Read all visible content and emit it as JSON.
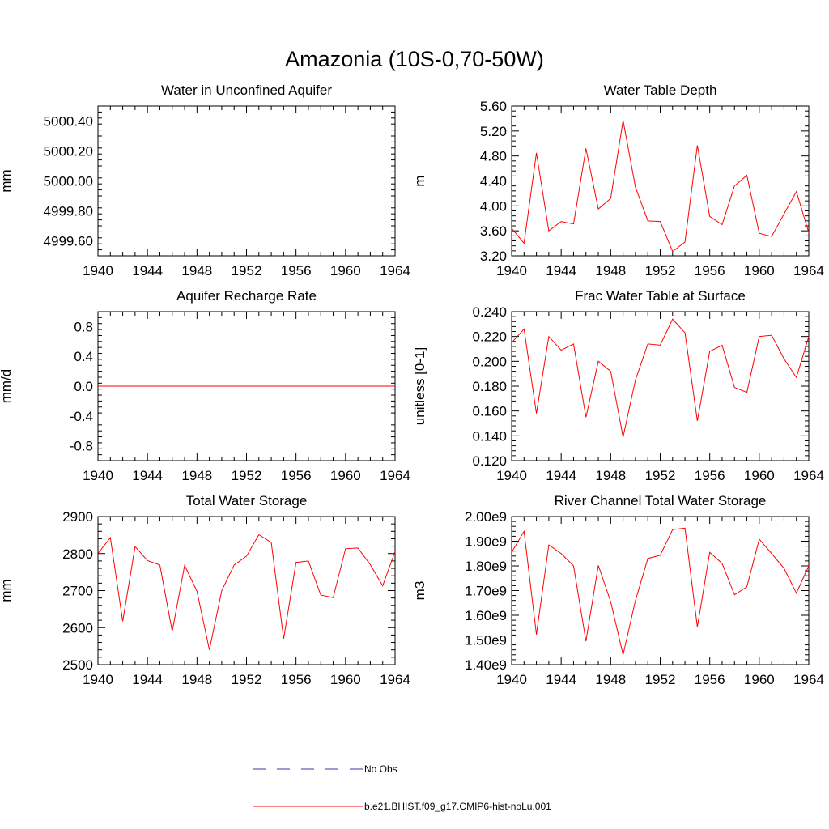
{
  "figure": {
    "title": "Amazonia (10S-0,70-50W)",
    "series_color": "#ff0000",
    "obs_color": "#3a3a9a"
  },
  "legend": {
    "obs_label": "No Obs",
    "model_label": "b.e21.BHIST.f09_g17.CMIP6-hist-noLu.001"
  },
  "chart_data": [
    {
      "type": "line",
      "title": "Water in Unconfined Aquifer",
      "ylabel": "mm",
      "xlim": [
        1940,
        1964
      ],
      "ylim": [
        4999.5,
        5000.5
      ],
      "xticks": [
        1940,
        1944,
        1948,
        1952,
        1956,
        1960,
        1964
      ],
      "yticks": [
        4999.6,
        4999.8,
        5000.0,
        5000.2,
        5000.4
      ],
      "ytick_labels": [
        "4999.60",
        "4999.80",
        "5000.00",
        "5000.20",
        "5000.40"
      ],
      "x": [
        1940,
        1941,
        1942,
        1943,
        1944,
        1945,
        1946,
        1947,
        1948,
        1949,
        1950,
        1951,
        1952,
        1953,
        1954,
        1955,
        1956,
        1957,
        1958,
        1959,
        1960,
        1961,
        1962,
        1963,
        1964
      ],
      "values": [
        5000,
        5000,
        5000,
        5000,
        5000,
        5000,
        5000,
        5000,
        5000,
        5000,
        5000,
        5000,
        5000,
        5000,
        5000,
        5000,
        5000,
        5000,
        5000,
        5000,
        5000,
        5000,
        5000,
        5000,
        5000
      ]
    },
    {
      "type": "line",
      "title": "Water Table Depth",
      "ylabel": "m",
      "xlim": [
        1940,
        1964
      ],
      "ylim": [
        3.2,
        5.6
      ],
      "xticks": [
        1940,
        1944,
        1948,
        1952,
        1956,
        1960,
        1964
      ],
      "yticks": [
        3.2,
        3.6,
        4.0,
        4.4,
        4.8,
        5.2,
        5.6
      ],
      "ytick_labels": [
        "3.20",
        "3.60",
        "4.00",
        "4.40",
        "4.80",
        "5.20",
        "5.60"
      ],
      "x": [
        1940,
        1941,
        1942,
        1943,
        1944,
        1945,
        1946,
        1947,
        1948,
        1949,
        1950,
        1951,
        1952,
        1953,
        1954,
        1955,
        1956,
        1957,
        1958,
        1959,
        1960,
        1961,
        1962,
        1963,
        1964
      ],
      "values": [
        3.64,
        3.4,
        4.85,
        3.6,
        3.75,
        3.71,
        4.92,
        3.95,
        4.12,
        5.37,
        4.3,
        3.76,
        3.75,
        3.27,
        3.42,
        4.97,
        3.83,
        3.7,
        4.32,
        4.49,
        3.56,
        3.51,
        3.87,
        4.23,
        3.57
      ]
    },
    {
      "type": "line",
      "title": "Aquifer Recharge Rate",
      "ylabel": "mm/d",
      "xlim": [
        1940,
        1964
      ],
      "ylim": [
        -1.0,
        1.0
      ],
      "xticks": [
        1940,
        1944,
        1948,
        1952,
        1956,
        1960,
        1964
      ],
      "yticks": [
        -0.8,
        -0.4,
        0.0,
        0.4,
        0.8
      ],
      "ytick_labels": [
        "-0.8",
        "-0.4",
        "0.0",
        "0.4",
        "0.8"
      ],
      "x": [
        1940,
        1941,
        1942,
        1943,
        1944,
        1945,
        1946,
        1947,
        1948,
        1949,
        1950,
        1951,
        1952,
        1953,
        1954,
        1955,
        1956,
        1957,
        1958,
        1959,
        1960,
        1961,
        1962,
        1963,
        1964
      ],
      "values": [
        0,
        0,
        0,
        0,
        0,
        0,
        0,
        0,
        0,
        0,
        0,
        0,
        0,
        0,
        0,
        0,
        0,
        0,
        0,
        0,
        0,
        0,
        0,
        0,
        0
      ]
    },
    {
      "type": "line",
      "title": "Frac Water Table at Surface",
      "ylabel": "unitless [0-1]",
      "xlim": [
        1940,
        1964
      ],
      "ylim": [
        0.12,
        0.24
      ],
      "xticks": [
        1940,
        1944,
        1948,
        1952,
        1956,
        1960,
        1964
      ],
      "yticks": [
        0.12,
        0.14,
        0.16,
        0.18,
        0.2,
        0.22,
        0.24
      ],
      "ytick_labels": [
        "0.120",
        "0.140",
        "0.160",
        "0.180",
        "0.200",
        "0.220",
        "0.240"
      ],
      "x": [
        1940,
        1941,
        1942,
        1943,
        1944,
        1945,
        1946,
        1947,
        1948,
        1949,
        1950,
        1951,
        1952,
        1953,
        1954,
        1955,
        1956,
        1957,
        1958,
        1959,
        1960,
        1961,
        1962,
        1963,
        1964
      ],
      "values": [
        0.215,
        0.226,
        0.158,
        0.22,
        0.209,
        0.214,
        0.155,
        0.2,
        0.192,
        0.139,
        0.185,
        0.214,
        0.213,
        0.234,
        0.223,
        0.152,
        0.208,
        0.213,
        0.179,
        0.175,
        0.22,
        0.221,
        0.202,
        0.187,
        0.22
      ]
    },
    {
      "type": "line",
      "title": "Total Water Storage",
      "ylabel": "mm",
      "xlim": [
        1940,
        1964
      ],
      "ylim": [
        2500,
        2900
      ],
      "xticks": [
        1940,
        1944,
        1948,
        1952,
        1956,
        1960,
        1964
      ],
      "yticks": [
        2500,
        2600,
        2700,
        2800,
        2900
      ],
      "ytick_labels": [
        "2500",
        "2600",
        "2700",
        "2800",
        "2900"
      ],
      "x": [
        1940,
        1941,
        1942,
        1943,
        1944,
        1945,
        1946,
        1947,
        1948,
        1949,
        1950,
        1951,
        1952,
        1953,
        1954,
        1955,
        1956,
        1957,
        1958,
        1959,
        1960,
        1961,
        1962,
        1963,
        1964
      ],
      "values": [
        2800,
        2843,
        2617,
        2819,
        2781,
        2769,
        2590,
        2768,
        2698,
        2540,
        2700,
        2769,
        2793,
        2851,
        2830,
        2570,
        2776,
        2780,
        2688,
        2681,
        2813,
        2815,
        2770,
        2713,
        2806
      ]
    },
    {
      "type": "line",
      "title": "River Channel Total Water Storage",
      "ylabel": "m3",
      "xlim": [
        1940,
        1964
      ],
      "ylim": [
        1400000000.0,
        2000000000.0
      ],
      "xticks": [
        1940,
        1944,
        1948,
        1952,
        1956,
        1960,
        1964
      ],
      "yticks": [
        1400000000.0,
        1500000000.0,
        1600000000.0,
        1700000000.0,
        1800000000.0,
        1900000000.0,
        2000000000.0
      ],
      "ytick_labels": [
        "1.40e9",
        "1.50e9",
        "1.60e9",
        "1.70e9",
        "1.80e9",
        "1.90e9",
        "2.00e9"
      ],
      "x": [
        1940,
        1941,
        1942,
        1943,
        1944,
        1945,
        1946,
        1947,
        1948,
        1949,
        1950,
        1951,
        1952,
        1953,
        1954,
        1955,
        1956,
        1957,
        1958,
        1959,
        1960,
        1961,
        1962,
        1963,
        1964
      ],
      "values": [
        1855000000.0,
        1940000000.0,
        1522000000.0,
        1885000000.0,
        1850000000.0,
        1800000000.0,
        1495000000.0,
        1802000000.0,
        1655000000.0,
        1440000000.0,
        1660000000.0,
        1830000000.0,
        1843000000.0,
        1947000000.0,
        1953000000.0,
        1553000000.0,
        1855000000.0,
        1810000000.0,
        1683000000.0,
        1715000000.0,
        1908000000.0,
        1850000000.0,
        1790000000.0,
        1690000000.0,
        1800000000.0
      ]
    }
  ]
}
